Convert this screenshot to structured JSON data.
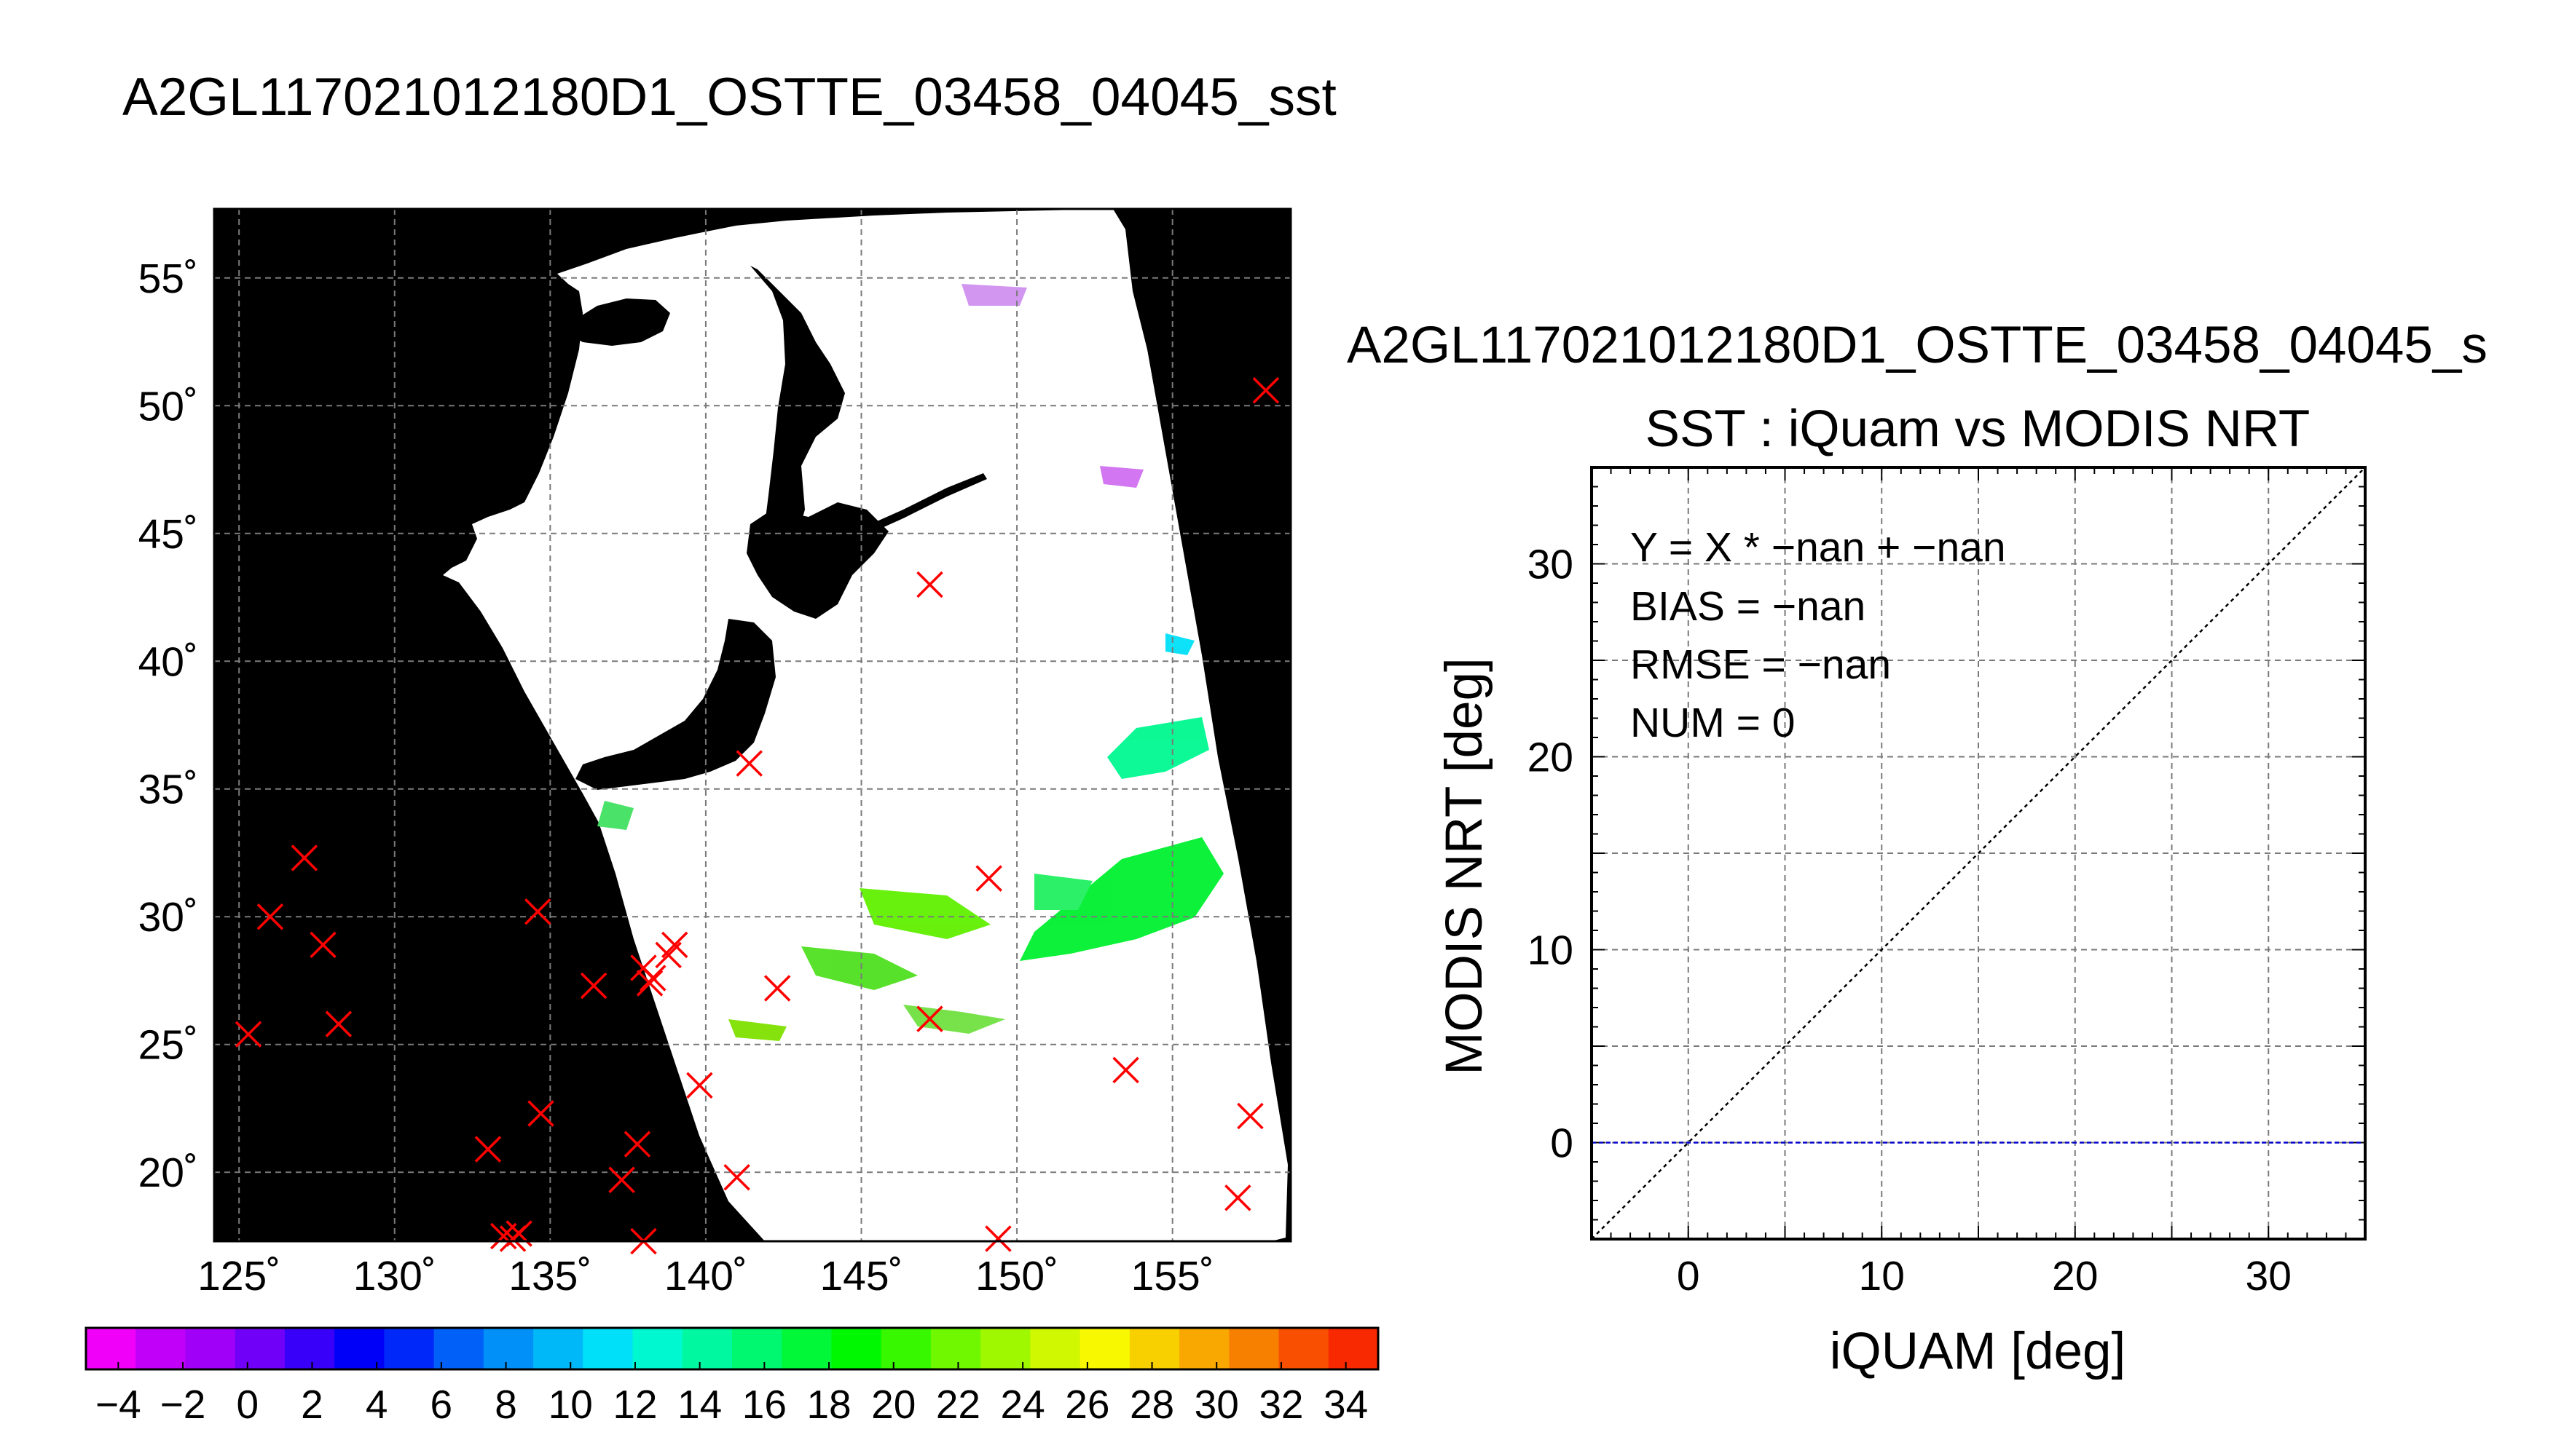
{
  "figure_title": "A2GL117021012180D1_OSTTE_03458_04045_sst",
  "map": {
    "lon_ticks": [
      "125˚",
      "130˚",
      "135˚",
      "140˚",
      "145˚",
      "150˚",
      "155˚"
    ],
    "lat_ticks": [
      "55˚",
      "50˚",
      "45˚",
      "40˚",
      "35˚",
      "30˚",
      "25˚",
      "20˚"
    ],
    "lon_range": [
      124.2,
      158.8
    ],
    "lat_range": [
      17.3,
      57.7
    ],
    "background_color": "#000000",
    "no_data_color": "#ffffff"
  },
  "colorbar": {
    "labels": [
      "−4",
      "−2",
      "0",
      "2",
      "4",
      "6",
      "8",
      "10",
      "12",
      "14",
      "16",
      "18",
      "20",
      "22",
      "24",
      "26",
      "28",
      "30",
      "32",
      "34"
    ],
    "range": [
      -5,
      35
    ],
    "colors": [
      "#f000f8",
      "#c000f8",
      "#a000f8",
      "#7000f8",
      "#3800f8",
      "#0000f8",
      "#0028f8",
      "#0060f8",
      "#0090f8",
      "#00b8f8",
      "#00e0f8",
      "#00f8d0",
      "#00f8a0",
      "#00f870",
      "#00f838",
      "#00f800",
      "#38f800",
      "#70f800",
      "#a0f800",
      "#d0f800",
      "#f8f800",
      "#f8d000",
      "#f8a800",
      "#f88000",
      "#f85000",
      "#f82800"
    ]
  },
  "scatter_panel": {
    "header_title": "A2GL117021012180D1_OSTTE_03458_04045_s",
    "title": "SST : iQuam vs MODIS NRT",
    "xlabel": "iQUAM [deg]",
    "ylabel": "MODIS NRT [deg]",
    "x_ticks": [
      "0",
      "10",
      "20",
      "30"
    ],
    "y_ticks": [
      "0",
      "10",
      "20",
      "30"
    ],
    "stats": [
      "Y = X * −nan + −nan",
      "BIAS = −nan",
      "RMSE = −nan",
      "NUM = 0"
    ]
  },
  "chart_data": [
    {
      "type": "scatter",
      "title": "",
      "xlabel": "",
      "ylabel": "",
      "xlim": [
        124.2,
        158.8
      ],
      "ylim": [
        17.3,
        57.7
      ],
      "series": [
        {
          "marker": "x",
          "color": "#ff0000",
          "points": [
            [
              158.0,
              50.6
            ],
            [
              147.2,
              43.0
            ],
            [
              141.4,
              36.0
            ],
            [
              149.1,
              31.5
            ],
            [
              127.1,
              32.3
            ],
            [
              126.0,
              30.0
            ],
            [
              127.7,
              28.9
            ],
            [
              134.6,
              30.2
            ],
            [
              136.4,
              27.3
            ],
            [
              138.0,
              28.0
            ],
            [
              138.3,
              27.6
            ],
            [
              138.2,
              27.4
            ],
            [
              138.8,
              28.5
            ],
            [
              139.0,
              28.9
            ],
            [
              142.3,
              27.2
            ],
            [
              147.2,
              26.0
            ],
            [
              125.3,
              25.4
            ],
            [
              128.2,
              25.8
            ],
            [
              153.5,
              24.0
            ],
            [
              157.5,
              22.2
            ],
            [
              139.8,
              23.4
            ],
            [
              134.7,
              22.3
            ],
            [
              133.0,
              20.9
            ],
            [
              137.8,
              21.1
            ],
            [
              137.3,
              19.7
            ],
            [
              141.0,
              19.8
            ],
            [
              157.1,
              19.0
            ],
            [
              133.5,
              17.5
            ],
            [
              133.8,
              17.4
            ],
            [
              134.0,
              17.6
            ],
            [
              138.0,
              17.3
            ],
            [
              149.4,
              17.4
            ]
          ]
        }
      ]
    },
    {
      "type": "scatter",
      "title": "SST : iQuam vs MODIS NRT",
      "xlabel": "iQUAM [deg]",
      "ylabel": "MODIS NRT [deg]",
      "xlim": [
        -5,
        35
      ],
      "ylim": [
        -5,
        35
      ],
      "grid": true,
      "series": [
        {
          "name": "",
          "values": []
        }
      ],
      "reference_lines": [
        {
          "kind": "identity",
          "style": "dotted",
          "color": "#000000",
          "from": [
            -5,
            -5
          ],
          "to": [
            35,
            35
          ]
        },
        {
          "kind": "horizontal",
          "y": 0,
          "style": "dashed",
          "color": "#0000cc"
        }
      ]
    }
  ]
}
